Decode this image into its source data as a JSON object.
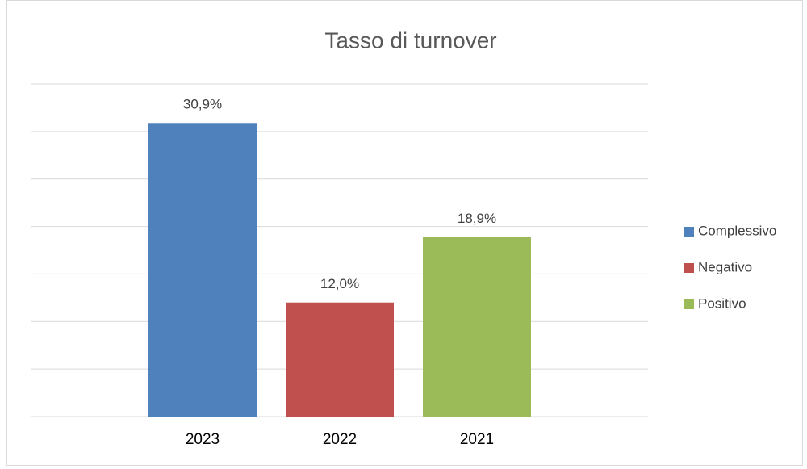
{
  "chart_data": {
    "type": "bar",
    "title": "Tasso di turnover",
    "categories": [
      "2023",
      "2022",
      "2021"
    ],
    "series": [
      {
        "name": "Complessivo",
        "color": "#4f81bd",
        "values": [
          30.9,
          null,
          null
        ],
        "value_labels": [
          "30,9%",
          null,
          null
        ]
      },
      {
        "name": "Negativo",
        "color": "#c0504d",
        "values": [
          null,
          12.0,
          null
        ],
        "value_labels": [
          null,
          "12,0%",
          null
        ]
      },
      {
        "name": "Positivo",
        "color": "#9bbb59",
        "values": [
          null,
          null,
          18.9
        ],
        "value_labels": [
          null,
          null,
          "18,9%"
        ]
      }
    ],
    "ylim": [
      0,
      35
    ],
    "yticks": [
      0,
      5,
      10,
      15,
      20,
      25,
      30,
      35
    ],
    "grid": true,
    "legend": "right"
  }
}
